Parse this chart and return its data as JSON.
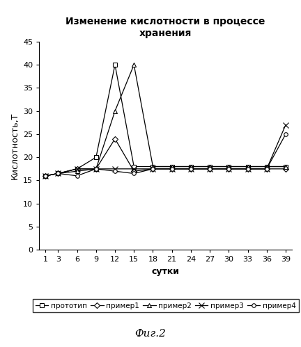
{
  "title": "Изменение кислотности в процессе\nхранения",
  "xlabel": "сутки",
  "ylabel": "Кислотность,Т",
  "xlim": [
    0,
    40
  ],
  "ylim": [
    0,
    45
  ],
  "xticks": [
    1,
    3,
    6,
    9,
    12,
    15,
    18,
    21,
    24,
    27,
    30,
    33,
    36,
    39
  ],
  "yticks": [
    0,
    5,
    10,
    15,
    20,
    25,
    30,
    35,
    40,
    45
  ],
  "caption": "Фиг.2",
  "series": [
    {
      "label": "прототип",
      "x": [
        1,
        3,
        6,
        9,
        12,
        15,
        18,
        21,
        24,
        27,
        30,
        33,
        36,
        39
      ],
      "y": [
        16,
        16.5,
        17.5,
        20,
        40,
        18,
        18,
        18,
        18,
        18,
        18,
        18,
        18,
        18
      ],
      "marker": "s",
      "color": "#000000",
      "markersize": 5,
      "markerfacecolor": "white",
      "linestyle": "-"
    },
    {
      "label": "пример1",
      "x": [
        1,
        3,
        6,
        9,
        12,
        15,
        18,
        21,
        24,
        27,
        30,
        33,
        36,
        39
      ],
      "y": [
        16,
        16.5,
        17.5,
        17.5,
        24,
        17.0,
        17.5,
        17.5,
        17.5,
        17.5,
        17.5,
        17.5,
        17.5,
        17.5
      ],
      "marker": "D",
      "color": "#000000",
      "markersize": 4,
      "markerfacecolor": "white",
      "linestyle": "-"
    },
    {
      "label": "пример2",
      "x": [
        1,
        3,
        6,
        9,
        12,
        15,
        18,
        21,
        24,
        27,
        30,
        33,
        36,
        39
      ],
      "y": [
        16,
        16.5,
        17,
        17.5,
        30,
        40,
        18,
        18,
        18,
        18,
        18,
        18,
        18,
        18
      ],
      "marker": "^",
      "color": "#000000",
      "markersize": 5,
      "markerfacecolor": "white",
      "linestyle": "-"
    },
    {
      "label": "пример3",
      "x": [
        1,
        3,
        6,
        9,
        12,
        15,
        18,
        21,
        24,
        27,
        30,
        33,
        36,
        39
      ],
      "y": [
        16,
        16.5,
        17.5,
        17.5,
        17.5,
        17.5,
        17.5,
        17.5,
        17.5,
        17.5,
        17.5,
        17.5,
        17.5,
        27
      ],
      "marker": "x",
      "color": "#000000",
      "markersize": 6,
      "markerfacecolor": "#000000",
      "linestyle": "-"
    },
    {
      "label": "пример4",
      "x": [
        1,
        3,
        6,
        9,
        12,
        15,
        18,
        21,
        24,
        27,
        30,
        33,
        36,
        39
      ],
      "y": [
        16,
        16.5,
        16,
        17.5,
        17.0,
        16.5,
        17.5,
        17.5,
        17.5,
        17.5,
        17.5,
        17.5,
        17.5,
        25
      ],
      "marker": "o",
      "color": "#000000",
      "markersize": 4,
      "markerfacecolor": "white",
      "linestyle": "-"
    }
  ]
}
